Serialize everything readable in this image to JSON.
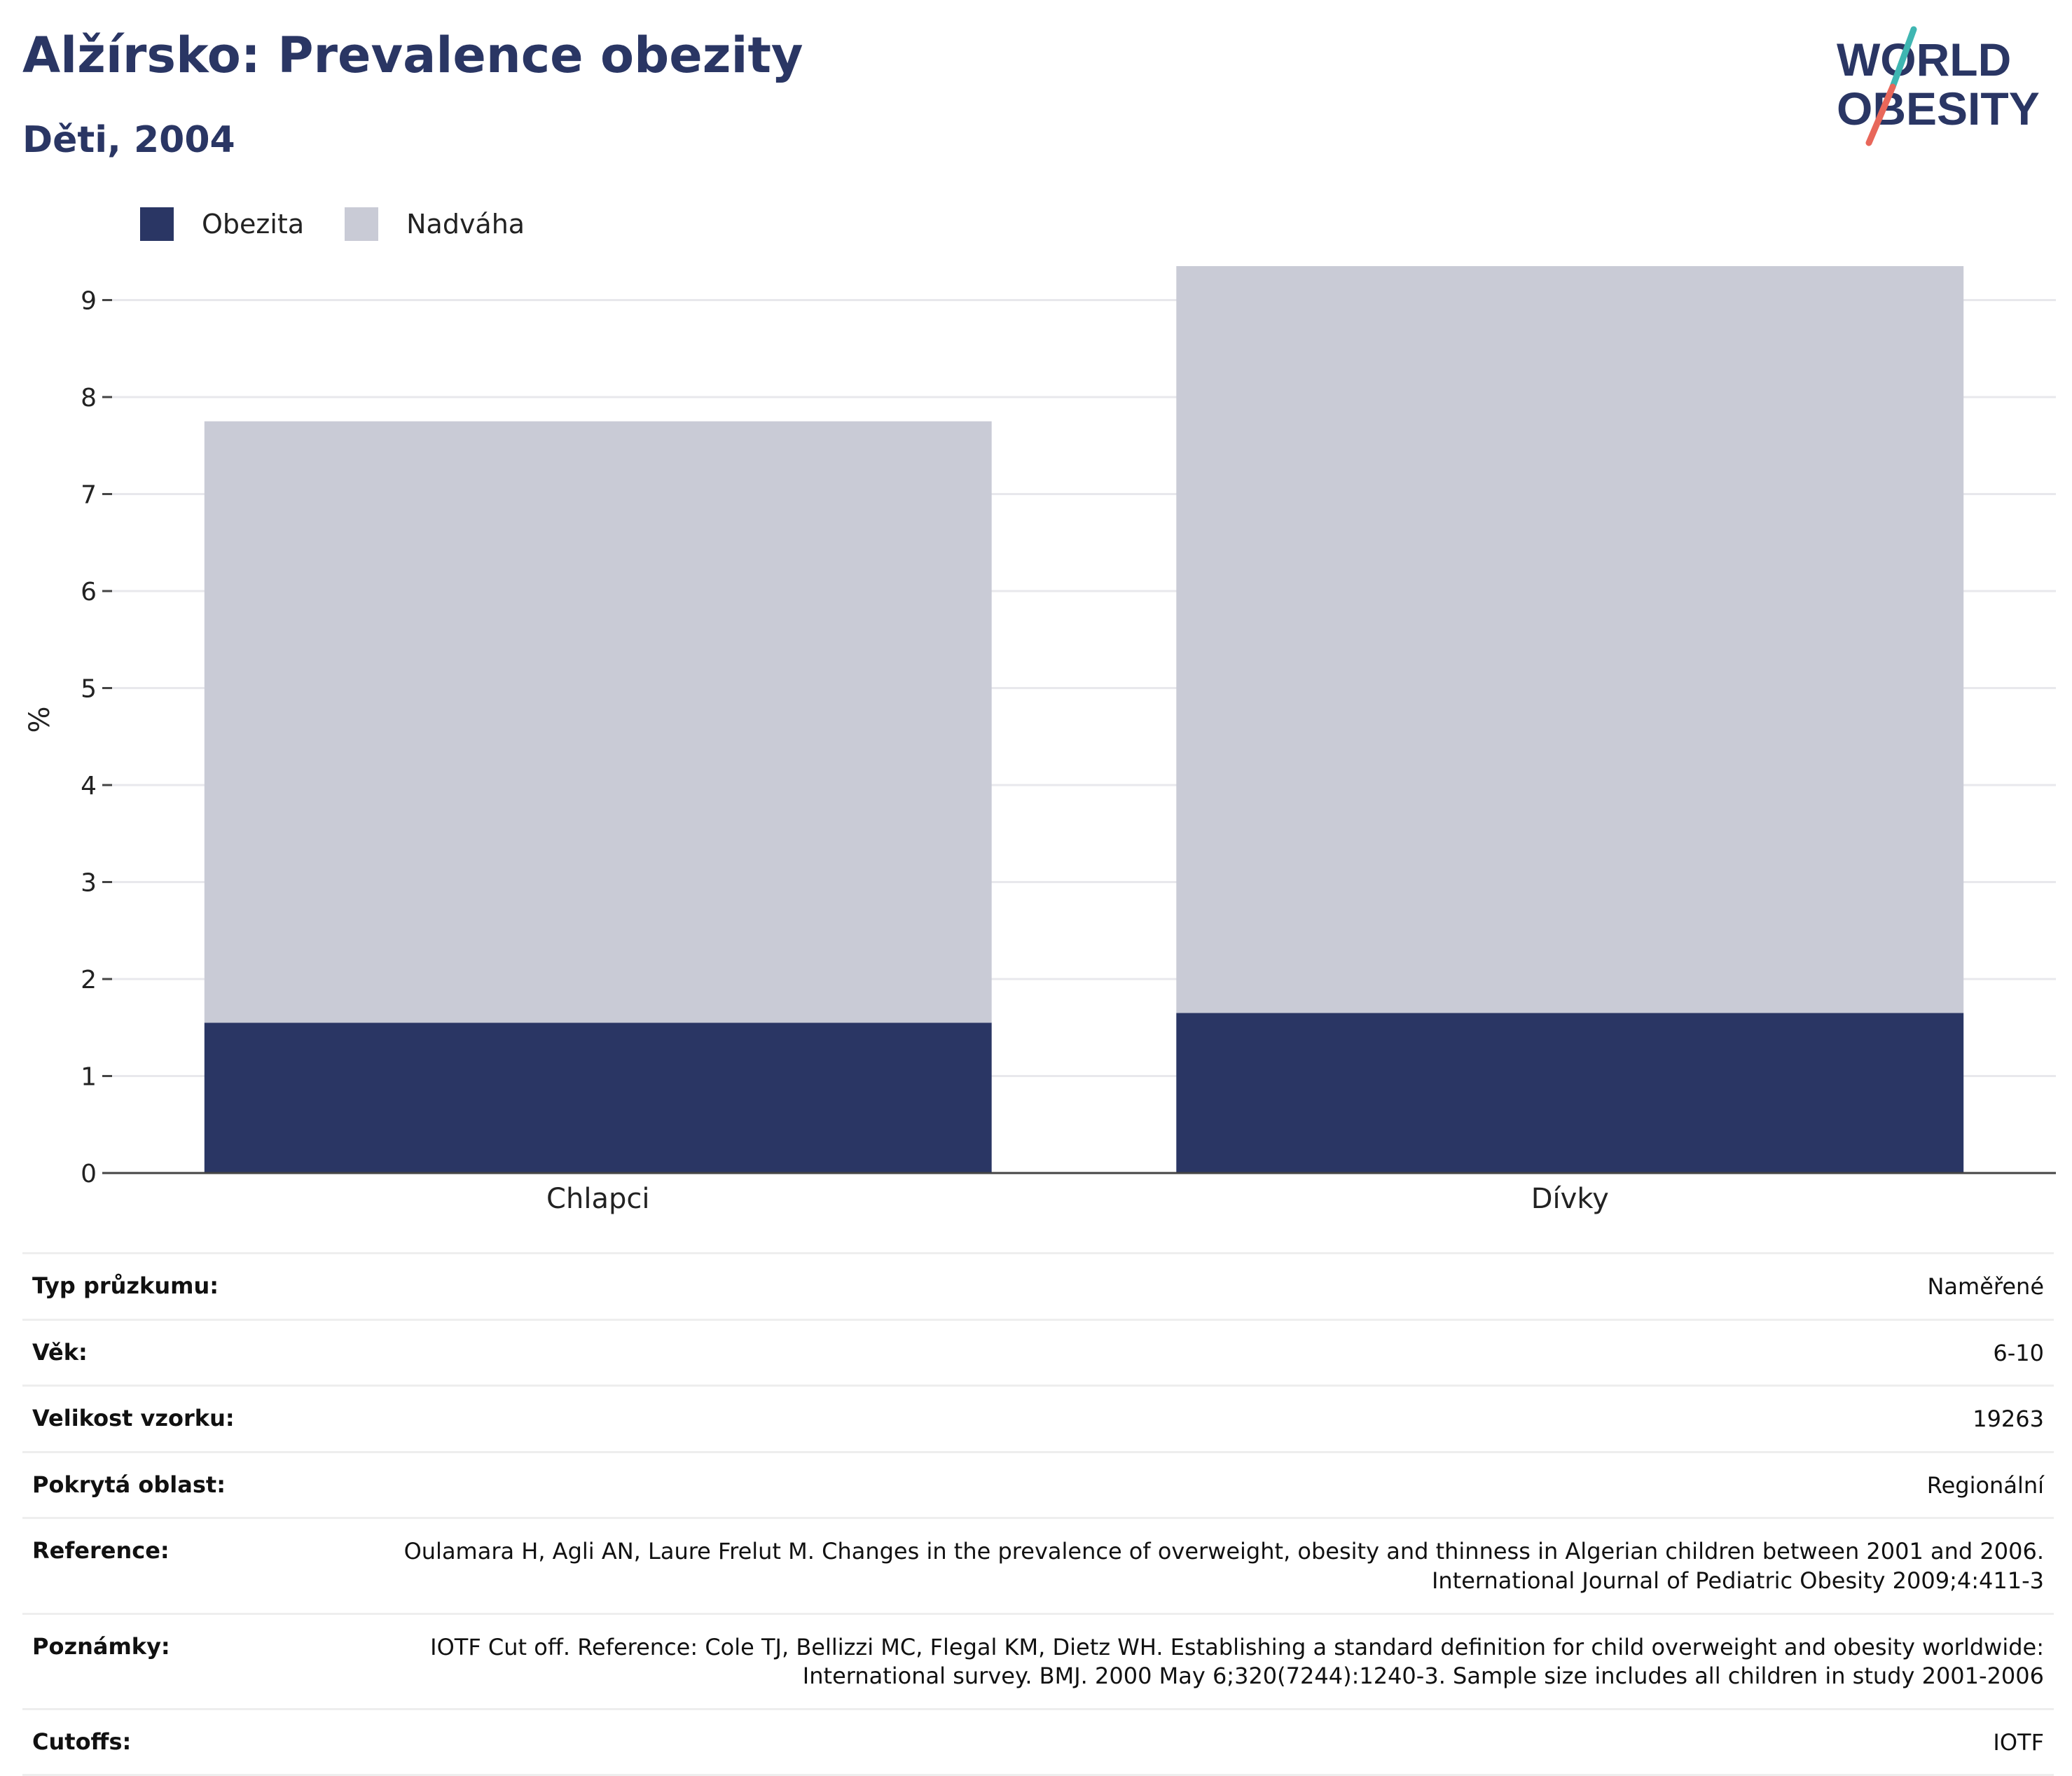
{
  "header": {
    "title": "Alžírsko: Prevalence obezity",
    "subtitle": "Děti, 2004"
  },
  "logo": {
    "line1": "WORLD",
    "line2": "OBESITY"
  },
  "colors": {
    "obesity": "#2a3664",
    "overweight": "#c9cbd6",
    "title": "#2a3664",
    "logo_teal": "#3fb6b2",
    "logo_coral": "#e8675a"
  },
  "legend": [
    {
      "label": "Obezita",
      "color": "#2a3664"
    },
    {
      "label": "Nadváha",
      "color": "#c9cbd6"
    }
  ],
  "chart_data": {
    "type": "bar",
    "stacked": true,
    "categories": [
      "Chlapci",
      "Dívky"
    ],
    "series": [
      {
        "name": "Obezita",
        "values": [
          1.55,
          1.65
        ]
      },
      {
        "name": "Nadváha",
        "values": [
          6.2,
          7.7
        ]
      }
    ],
    "totals": [
      7.75,
      9.35
    ],
    "ylabel": "%",
    "ylim": [
      0,
      9.35
    ],
    "yticks": [
      0,
      1,
      2,
      3,
      4,
      5,
      6,
      7,
      8,
      9
    ],
    "grid": true,
    "legend_position": "top-left"
  },
  "details": [
    {
      "key": "Typ průzkumu:",
      "value": "Naměřené"
    },
    {
      "key": "Věk:",
      "value": "6-10"
    },
    {
      "key": "Velikost vzorku:",
      "value": "19263"
    },
    {
      "key": "Pokrytá oblast:",
      "value": "Regionální"
    },
    {
      "key": "Reference:",
      "value": "Oulamara H, Agli AN, Laure Frelut M. Changes in the prevalence of overweight, obesity and thinness in Algerian children between 2001 and 2006. International Journal of Pediatric Obesity 2009;4:411-3"
    },
    {
      "key": "Poznámky:",
      "value": "IOTF Cut off. Reference: Cole TJ, Bellizzi MC, Flegal KM, Dietz WH. Establishing a standard definition for child overweight and obesity worldwide: International survey. BMJ. 2000 May 6;320(7244):1240-3. Sample size includes all children in study 2001-2006"
    },
    {
      "key": "Cutoffs:",
      "value": "IOTF"
    }
  ]
}
